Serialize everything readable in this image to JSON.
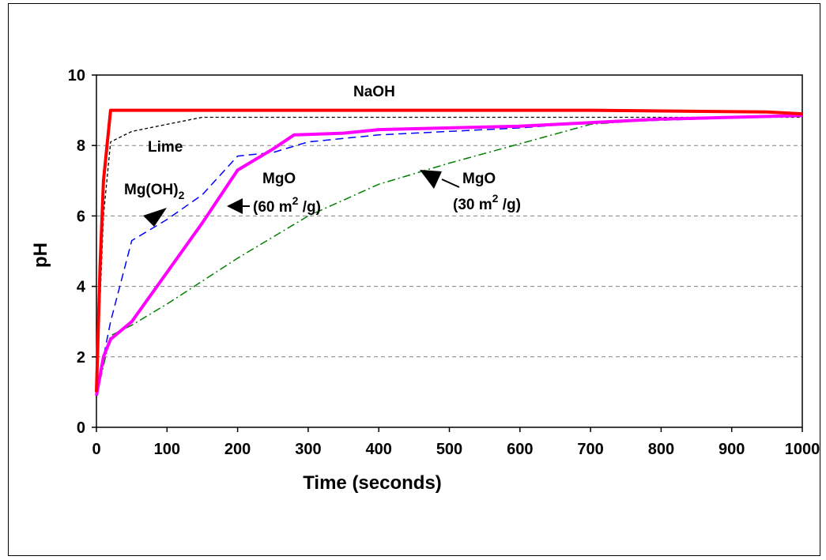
{
  "chart_data": {
    "type": "line",
    "title": "",
    "xlabel": "Time (seconds)",
    "ylabel": "pH",
    "xlim": [
      0,
      1000
    ],
    "ylim": [
      0,
      10
    ],
    "xticks": [
      0,
      100,
      200,
      300,
      400,
      500,
      600,
      700,
      800,
      900,
      1000
    ],
    "yticks": [
      0,
      2,
      4,
      6,
      8,
      10
    ],
    "grid": "horizontal dashed",
    "legend": "none (inline annotations)",
    "series": [
      {
        "name": "NaOH",
        "color": "#ff0000",
        "style": "solid-thick",
        "x": [
          0,
          5,
          10,
          20,
          25,
          700,
          950,
          1000
        ],
        "y": [
          1.0,
          4.5,
          7.0,
          9.0,
          9.0,
          9.0,
          8.95,
          8.9
        ]
      },
      {
        "name": "Lime",
        "color": "#000000",
        "style": "dashed-thin",
        "x": [
          0,
          10,
          20,
          50,
          100,
          150,
          300,
          500,
          700,
          1000
        ],
        "y": [
          1.0,
          6.0,
          8.1,
          8.4,
          8.6,
          8.8,
          8.8,
          8.8,
          8.8,
          8.8
        ]
      },
      {
        "name": "Mg(OH)2",
        "color": "#0000ff",
        "style": "dashed",
        "x": [
          0,
          20,
          50,
          100,
          150,
          200,
          250,
          300,
          400,
          600,
          700,
          1000
        ],
        "y": [
          1.0,
          3.0,
          5.3,
          5.9,
          6.6,
          7.7,
          7.8,
          8.1,
          8.3,
          8.5,
          8.65,
          8.85
        ]
      },
      {
        "name": "MgO (60 m2/g)",
        "color": "#ff00ff",
        "style": "solid-thick",
        "x": [
          0,
          10,
          20,
          50,
          100,
          150,
          200,
          250,
          280,
          350,
          400,
          600,
          700,
          800,
          1000
        ],
        "y": [
          0.9,
          2.0,
          2.5,
          3.0,
          4.4,
          5.8,
          7.3,
          7.9,
          8.3,
          8.35,
          8.45,
          8.55,
          8.65,
          8.75,
          8.85
        ]
      },
      {
        "name": "MgO (30 m2/g)",
        "color": "#008000",
        "style": "dashdot",
        "x": [
          0,
          20,
          50,
          100,
          200,
          300,
          400,
          450,
          500,
          600,
          700,
          800,
          1000
        ],
        "y": [
          0.9,
          2.6,
          2.9,
          3.5,
          4.8,
          6.0,
          6.9,
          7.2,
          7.5,
          8.05,
          8.6,
          8.75,
          8.85
        ]
      }
    ],
    "annotations": {
      "naoh": "NaOH",
      "lime": "Lime",
      "mgoh2_main": "Mg(OH)",
      "mgoh2_sub": "2",
      "mgo60_line1": "MgO",
      "mgo60_line2a": "(60 m",
      "mgo60_sup": "2",
      "mgo60_line2b": " /g)",
      "mgo30_line1": "MgO",
      "mgo30_line2a": "(30 m",
      "mgo30_sup": "2",
      "mgo30_line2b": " /g)"
    }
  }
}
